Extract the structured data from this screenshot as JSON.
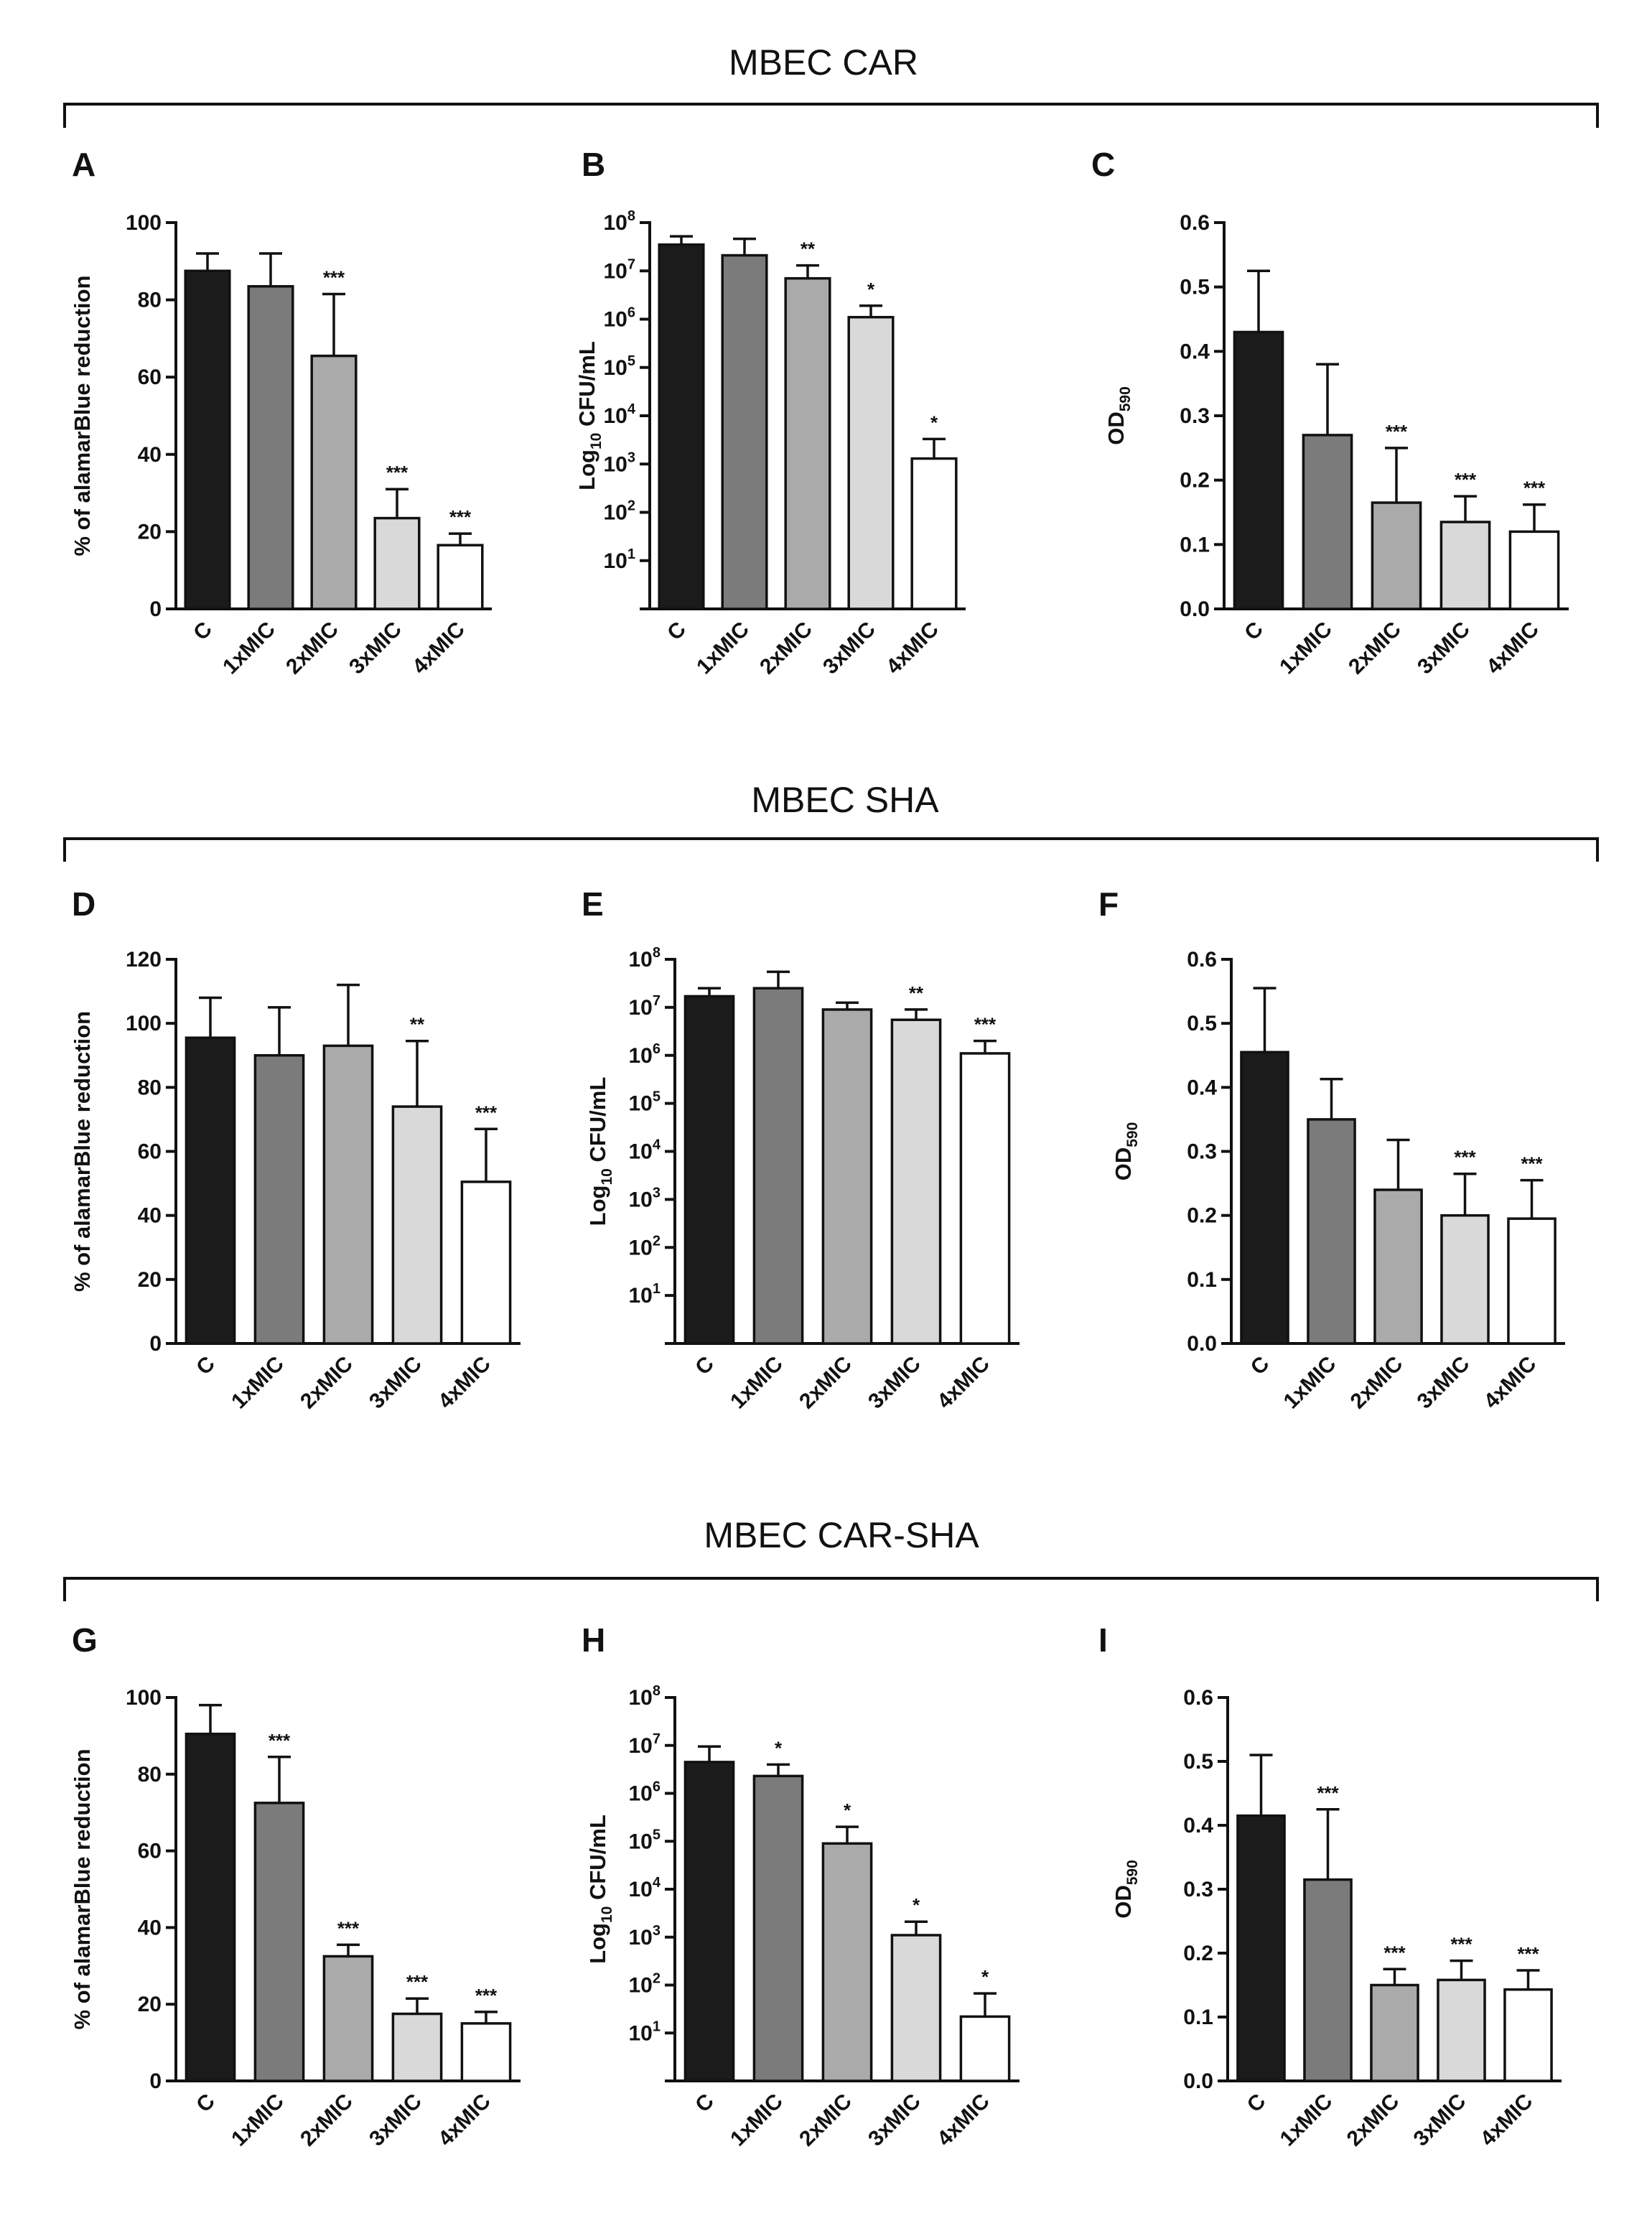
{
  "figure": {
    "groups": [
      {
        "title": "MBEC CAR"
      },
      {
        "title": "MBEC SHA"
      },
      {
        "title": "MBEC CAR-SHA"
      }
    ],
    "bar_colors": [
      "#1b1b1b",
      "#7b7b7b",
      "#aaaaaa",
      "#d9d9d9",
      "#ffffff"
    ]
  },
  "chart_data": [
    {
      "panel": "A",
      "type": "bar",
      "title": "",
      "xlabel": "",
      "ylabel": "% of alamarBlue reduction",
      "scale": "linear",
      "ylim": [
        0,
        100
      ],
      "yticks": [
        0,
        20,
        40,
        60,
        80,
        100
      ],
      "ytick_labels": [
        "0",
        "20",
        "40",
        "60",
        "80",
        "100"
      ],
      "categories": [
        "C",
        "1xMIC",
        "2xMIC",
        "3xMIC",
        "4xMIC"
      ],
      "values": [
        87.5,
        83.5,
        65.5,
        23.5,
        16.5
      ],
      "errors": [
        4.5,
        8.5,
        16,
        7.5,
        3
      ],
      "significance": [
        "",
        "",
        "***",
        "***",
        "***"
      ]
    },
    {
      "panel": "B",
      "type": "bar",
      "title": "",
      "xlabel": "",
      "ylabel": "Log10 CFU/mL",
      "scale": "log",
      "ylim": [
        1,
        100000000
      ],
      "yticks": [
        10,
        100,
        1000,
        10000,
        100000,
        1000000,
        10000000,
        100000000
      ],
      "ytick_labels": [
        "10^1",
        "10^2",
        "10^3",
        "10^4",
        "10^5",
        "10^6",
        "10^7",
        "10^8"
      ],
      "categories": [
        "C",
        "1xMIC",
        "2xMIC",
        "3xMIC",
        "4xMIC"
      ],
      "values": [
        35000000,
        21000000,
        7000000,
        1100000,
        1300
      ],
      "errors": [
        17000000,
        25000000,
        6000000,
        800000,
        2000
      ],
      "significance": [
        "",
        "",
        "**",
        "*",
        "*"
      ]
    },
    {
      "panel": "C",
      "type": "bar",
      "title": "",
      "xlabel": "",
      "ylabel": "OD590",
      "scale": "linear",
      "ylim": [
        0,
        0.6
      ],
      "yticks": [
        0,
        0.1,
        0.2,
        0.3,
        0.4,
        0.5,
        0.6
      ],
      "ytick_labels": [
        "0.0",
        "0.1",
        "0.2",
        "0.3",
        "0.4",
        "0.5",
        "0.6"
      ],
      "categories": [
        "C",
        "1xMIC",
        "2xMIC",
        "3xMIC",
        "4xMIC"
      ],
      "values": [
        0.43,
        0.27,
        0.165,
        0.135,
        0.12
      ],
      "errors": [
        0.095,
        0.11,
        0.085,
        0.04,
        0.042
      ],
      "significance": [
        "",
        "",
        "***",
        "***",
        "***"
      ]
    },
    {
      "panel": "D",
      "type": "bar",
      "title": "",
      "xlabel": "",
      "ylabel": "% of alamarBlue reduction",
      "scale": "linear",
      "ylim": [
        0,
        120
      ],
      "yticks": [
        0,
        20,
        40,
        60,
        80,
        100,
        120
      ],
      "ytick_labels": [
        "0",
        "20",
        "40",
        "60",
        "80",
        "100",
        "120"
      ],
      "categories": [
        "C",
        "1xMIC",
        "2xMIC",
        "3xMIC",
        "4xMIC"
      ],
      "values": [
        95.5,
        90,
        93,
        74,
        50.5
      ],
      "errors": [
        12.5,
        15,
        19,
        20.5,
        16.5
      ],
      "significance": [
        "",
        "",
        "",
        "**",
        "***"
      ]
    },
    {
      "panel": "E",
      "type": "bar",
      "title": "",
      "xlabel": "",
      "ylabel": "Log10 CFU/mL",
      "scale": "log",
      "ylim": [
        1,
        100000000
      ],
      "yticks": [
        10,
        100,
        1000,
        10000,
        100000,
        1000000,
        10000000,
        100000000
      ],
      "ytick_labels": [
        "10^1",
        "10^2",
        "10^3",
        "10^4",
        "10^5",
        "10^6",
        "10^7",
        "10^8"
      ],
      "categories": [
        "C",
        "1xMIC",
        "2xMIC",
        "3xMIC",
        "4xMIC"
      ],
      "values": [
        17000000,
        25000000,
        9000000,
        5500000,
        1100000
      ],
      "errors": [
        8000000,
        30000000,
        3500000,
        3500000,
        900000
      ],
      "significance": [
        "",
        "",
        "",
        "**",
        "***"
      ]
    },
    {
      "panel": "F",
      "type": "bar",
      "title": "",
      "xlabel": "",
      "ylabel": "OD590",
      "scale": "linear",
      "ylim": [
        0,
        0.6
      ],
      "yticks": [
        0,
        0.1,
        0.2,
        0.3,
        0.4,
        0.5,
        0.6
      ],
      "ytick_labels": [
        "0.0",
        "0.1",
        "0.2",
        "0.3",
        "0.4",
        "0.5",
        "0.6"
      ],
      "categories": [
        "C",
        "1xMIC",
        "2xMIC",
        "3xMIC",
        "4xMIC"
      ],
      "values": [
        0.455,
        0.35,
        0.24,
        0.2,
        0.195
      ],
      "errors": [
        0.1,
        0.063,
        0.078,
        0.065,
        0.06
      ],
      "significance": [
        "",
        "",
        "",
        "***",
        "***"
      ]
    },
    {
      "panel": "G",
      "type": "bar",
      "title": "",
      "xlabel": "",
      "ylabel": "% of alamarBlue reduction",
      "scale": "linear",
      "ylim": [
        0,
        100
      ],
      "yticks": [
        0,
        20,
        40,
        60,
        80,
        100
      ],
      "ytick_labels": [
        "0",
        "20",
        "40",
        "60",
        "80",
        "100"
      ],
      "categories": [
        "C",
        "1xMIC",
        "2xMIC",
        "3xMIC",
        "4xMIC"
      ],
      "values": [
        90.5,
        72.5,
        32.5,
        17.5,
        15
      ],
      "errors": [
        7.5,
        12,
        3,
        4,
        3
      ],
      "significance": [
        "",
        "***",
        "***",
        "***",
        "***"
      ]
    },
    {
      "panel": "H",
      "type": "bar",
      "title": "",
      "xlabel": "",
      "ylabel": "Log10 CFU/mL",
      "scale": "log",
      "ylim": [
        1,
        100000000
      ],
      "yticks": [
        10,
        100,
        1000,
        10000,
        100000,
        1000000,
        10000000,
        100000000
      ],
      "ytick_labels": [
        "10^1",
        "10^2",
        "10^3",
        "10^4",
        "10^5",
        "10^6",
        "10^7",
        "10^8"
      ],
      "categories": [
        "C",
        "1xMIC",
        "2xMIC",
        "3xMIC",
        "4xMIC"
      ],
      "values": [
        4500000,
        2300000,
        90000,
        1100,
        22
      ],
      "errors": [
        5000000,
        1700000,
        110000,
        1000,
        45
      ],
      "significance": [
        "",
        "*",
        "*",
        "*",
        "*"
      ]
    },
    {
      "panel": "I",
      "type": "bar",
      "title": "",
      "xlabel": "",
      "ylabel": "OD590",
      "scale": "linear",
      "ylim": [
        0,
        0.6
      ],
      "yticks": [
        0,
        0.1,
        0.2,
        0.3,
        0.4,
        0.5,
        0.6
      ],
      "ytick_labels": [
        "0.0",
        "0.1",
        "0.2",
        "0.3",
        "0.4",
        "0.5",
        "0.6"
      ],
      "categories": [
        "C",
        "1xMIC",
        "2xMIC",
        "3xMIC",
        "4xMIC"
      ],
      "values": [
        0.415,
        0.315,
        0.15,
        0.158,
        0.143
      ],
      "errors": [
        0.095,
        0.11,
        0.025,
        0.03,
        0.03
      ],
      "significance": [
        "",
        "***",
        "***",
        "***",
        "***"
      ]
    }
  ]
}
